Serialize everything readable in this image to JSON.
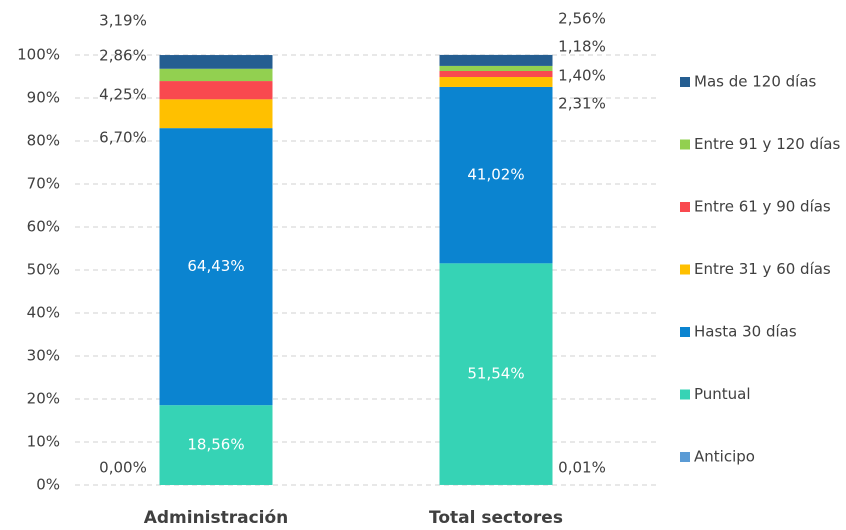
{
  "chart_data": {
    "type": "stacked_bar",
    "categories": [
      "Administración",
      "Total sectores"
    ],
    "series": [
      {
        "name": "Anticipo",
        "color": "#5b9bd5",
        "values": [
          0.0,
          0.01
        ],
        "value_labels": [
          "0,00%",
          "0,01%"
        ]
      },
      {
        "name": "Puntual",
        "color": "#36d3b5",
        "values": [
          18.56,
          51.54
        ],
        "value_labels": [
          "18,56%",
          "51,54%"
        ]
      },
      {
        "name": "Hasta 30 días",
        "color": "#0b84d0",
        "values": [
          64.43,
          41.02
        ],
        "value_labels": [
          "64,43%",
          "41,02%"
        ]
      },
      {
        "name": "Entre 31 y 60 días",
        "color": "#ffc000",
        "values": [
          6.7,
          2.31
        ],
        "value_labels": [
          "6,70%",
          "2,31%"
        ]
      },
      {
        "name": "Entre 61 y 90 días",
        "color": "#f9494f",
        "values": [
          4.25,
          1.4
        ],
        "value_labels": [
          "4,25%",
          "1,40%"
        ]
      },
      {
        "name": "Entre 91 y 120 días",
        "color": "#92d050",
        "values": [
          2.86,
          1.18
        ],
        "value_labels": [
          "2,86%",
          "1,18%"
        ]
      },
      {
        "name": "Mas de 120 días",
        "color": "#255e91",
        "values": [
          3.19,
          2.56
        ],
        "value_labels": [
          "3,19%",
          "2,56%"
        ]
      }
    ],
    "ylim": [
      0,
      100
    ],
    "yticks": [
      {
        "value": 0,
        "label": "0%"
      },
      {
        "value": 10,
        "label": "10%"
      },
      {
        "value": 20,
        "label": "20%"
      },
      {
        "value": 30,
        "label": "30%"
      },
      {
        "value": 40,
        "label": "40%"
      },
      {
        "value": 50,
        "label": "50%"
      },
      {
        "value": 60,
        "label": "60%"
      },
      {
        "value": 70,
        "label": "70%"
      },
      {
        "value": 80,
        "label": "80%"
      },
      {
        "value": 90,
        "label": "90%"
      },
      {
        "value": 100,
        "label": "100%"
      }
    ],
    "grid": true,
    "legend": "right"
  }
}
